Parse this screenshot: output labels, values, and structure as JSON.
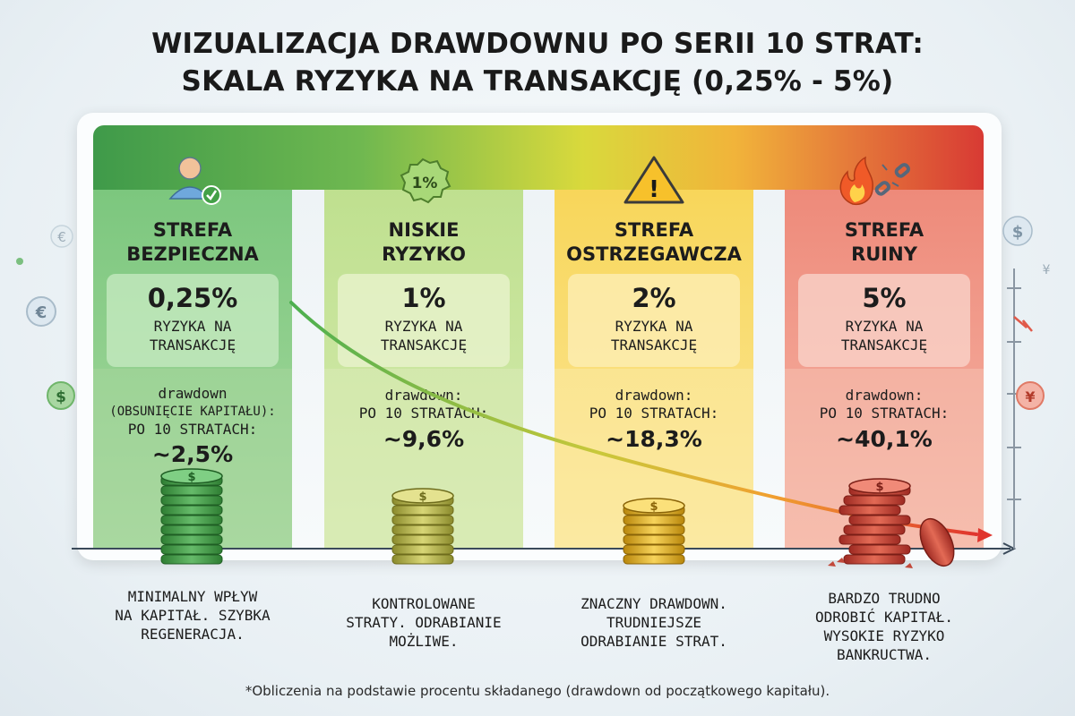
{
  "title": {
    "line1": "WIZUALIZACJA DRAWDOWNU PO SERII 10 STRAT:",
    "line2": "SKALA RYZYKA NA TRANSAKCJĘ (0,25% - 5%)"
  },
  "zones": [
    {
      "name_line1": "STREFA",
      "name_line2": "BEZPIECZNA",
      "rate": "0,25%",
      "rate_label1": "RYZYKA NA",
      "rate_label2": "TRANSAKCJĘ",
      "dd_line1": "drawdown",
      "dd_line2": "(OBSUNIĘCIE KAPITAŁU):",
      "dd_line3": "PO 10 STRATACH:",
      "dd_value": "~2,5%",
      "desc_line1": "MINIMALNY WPŁYW",
      "desc_line2": "NA KAPITAŁ. SZYBKA",
      "desc_line3": "REGENERACJA.",
      "desc_line4": "",
      "icon": "user-check-icon",
      "icon_text": "",
      "color": "#4fa557"
    },
    {
      "name_line1": "NISKIE",
      "name_line2": "RYZYKO",
      "rate": "1%",
      "rate_label1": "RYZYKA NA",
      "rate_label2": "TRANSAKCJĘ",
      "dd_line1": "drawdown:",
      "dd_line2": "PO 10 STRATACH:",
      "dd_line3": "",
      "dd_value": "~9,6%",
      "desc_line1": "KONTROLOWANE",
      "desc_line2": "STRATY. ODRABIANIE",
      "desc_line3": "MOŻLIWE.",
      "desc_line4": "",
      "icon": "percent-badge-icon",
      "icon_text": "1%",
      "color": "#9ccc65"
    },
    {
      "name_line1": "STREFA",
      "name_line2": "OSTRZEGAWCZA",
      "rate": "2%",
      "rate_label1": "RYZYKA NA",
      "rate_label2": "TRANSAKCJĘ",
      "dd_line1": "drawdown:",
      "dd_line2": "PO 10 STRATACH:",
      "dd_line3": "",
      "dd_value": "~18,3%",
      "desc_line1": "ZNACZNY DRAWDOWN.",
      "desc_line2": "TRUDNIEJSZE",
      "desc_line3": "ODRABIANIE STRAT.",
      "desc_line4": "",
      "icon": "warning-icon",
      "icon_text": "!",
      "color": "#f2c230"
    },
    {
      "name_line1": "STREFA",
      "name_line2": "RUINY",
      "rate": "5%",
      "rate_label1": "RYZYKA NA",
      "rate_label2": "TRANSAKCJĘ",
      "dd_line1": "drawdown:",
      "dd_line2": "PO 10 STRATACH:",
      "dd_line3": "",
      "dd_value": "~40,1%",
      "desc_line1": "BARDZO TRUDNO",
      "desc_line2": "ODROBIĆ KAPITAŁ.",
      "desc_line3": "WYSOKIE RYZYKO",
      "desc_line4": "BANKRUCTWA.",
      "icon": "fire-broken-chain-icon",
      "icon_text": "",
      "color": "#d9473c"
    }
  ],
  "side_symbols": {
    "left": [
      "€",
      "€",
      "$"
    ],
    "right": [
      "$",
      "¥",
      "¥"
    ]
  },
  "coin_symbol": "$",
  "footnote": "*Obliczenia na podstawie procentu składanego (drawdown od początkowego kapitału)."
}
